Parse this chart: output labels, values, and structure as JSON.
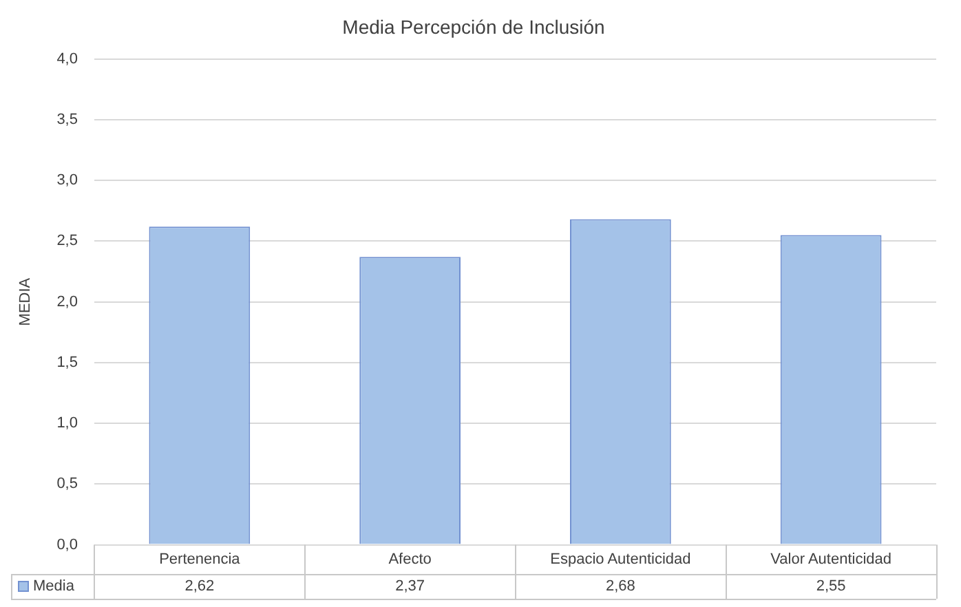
{
  "chart_data": {
    "type": "bar",
    "title": "Media Percepción de Inclusión",
    "ylabel": "MEDIA",
    "categories": [
      "Pertenencia",
      "Afecto",
      "Espacio Autenticidad",
      "Valor Autenticidad"
    ],
    "series": [
      {
        "name": "Media",
        "color": "#a4c2e8",
        "values": [
          2.62,
          2.37,
          2.68,
          2.55
        ],
        "value_labels": [
          "2,62",
          "2,37",
          "2,68",
          "2,55"
        ]
      }
    ],
    "ylim": [
      0,
      4
    ],
    "yticks": [
      {
        "value": 0,
        "label": "0,0"
      },
      {
        "value": 0.5,
        "label": "0,5"
      },
      {
        "value": 1,
        "label": "1,0"
      },
      {
        "value": 1.5,
        "label": "1,5"
      },
      {
        "value": 2,
        "label": "2,0"
      },
      {
        "value": 2.5,
        "label": "2,5"
      },
      {
        "value": 3,
        "label": "3,0"
      },
      {
        "value": 3.5,
        "label": "3,5"
      },
      {
        "value": 4,
        "label": "4,0"
      }
    ],
    "grid": "y",
    "legend": "bottom"
  }
}
